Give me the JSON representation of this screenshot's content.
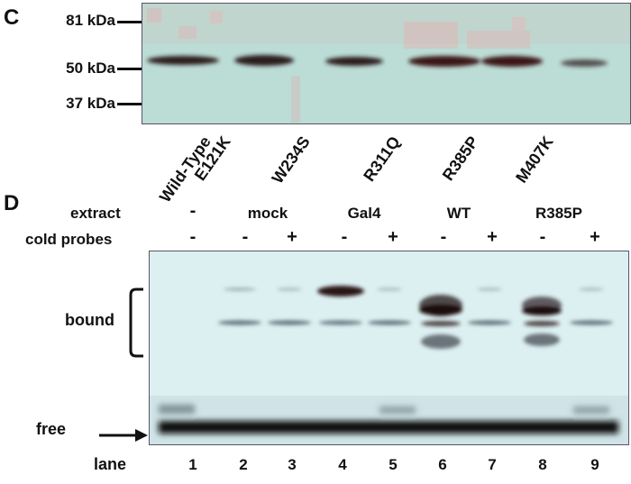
{
  "panel_c": {
    "letter": "C",
    "markers": [
      "81 kDa",
      "50 kDa",
      "37 kDa"
    ],
    "lanes": [
      "Wild-Type",
      "E121K",
      "W234S",
      "R311Q",
      "R385P",
      "M407K"
    ]
  },
  "panel_d": {
    "letter": "D",
    "extract_label": "extract",
    "cold_probes_label": "cold probes",
    "groups": [
      "-",
      "mock",
      "Gal4",
      "WT",
      "R385P"
    ],
    "cold_probes": [
      "-",
      "-",
      "+",
      "-",
      "+",
      "-",
      "+",
      "-",
      "+"
    ],
    "bound_label": "bound",
    "free_label": "free",
    "lane_label": "lane",
    "lane_numbers": [
      "1",
      "2",
      "3",
      "4",
      "5",
      "6",
      "7",
      "8",
      "9"
    ]
  }
}
